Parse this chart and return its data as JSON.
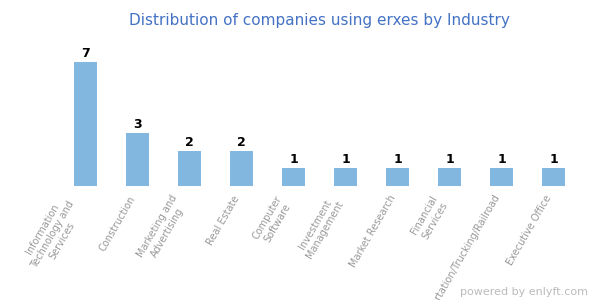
{
  "title": "Distribution of companies using erxes by Industry",
  "title_color": "#4472c4",
  "categories": [
    "Information\nTechnology and\nServices",
    "Construction",
    "Marketing and\nAdvertising",
    "Real Estate",
    "Computer\nSoftware",
    "Investment\nManagement",
    "Market Research",
    "Financial\nServices",
    "Transportation/Trucking/Railroad",
    "Executive Office"
  ],
  "values": [
    7,
    3,
    2,
    2,
    1,
    1,
    1,
    1,
    1,
    1
  ],
  "bar_color": "#82B8E0",
  "background_color": "#ffffff",
  "ylim": [
    0,
    8.5
  ],
  "value_label_fontsize": 9,
  "tick_label_fontsize": 7,
  "title_fontsize": 11,
  "watermark": "powered by enlyft.com"
}
